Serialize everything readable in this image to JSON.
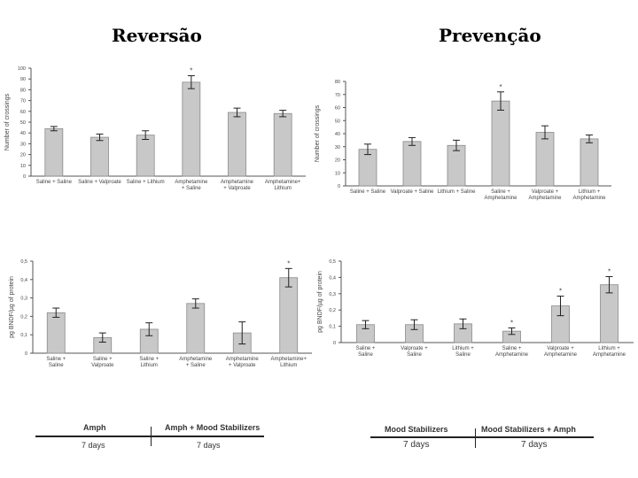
{
  "headings": {
    "left": "Reversão",
    "right": "Prevenção"
  },
  "chart_data": [
    {
      "id": "tl",
      "type": "bar",
      "title": "",
      "ylabel": "Number of crossings",
      "xlabel": "",
      "ylim": [
        0,
        100
      ],
      "yticks": [
        0,
        10,
        20,
        30,
        40,
        50,
        60,
        70,
        80,
        90,
        100
      ],
      "categories": [
        [
          "Saline + Saline"
        ],
        [
          "Saline + Valproate"
        ],
        [
          "Saline + Lithium"
        ],
        [
          "Amphetamine",
          "+ Saline"
        ],
        [
          "Amphetamine",
          "+ Valproate"
        ],
        [
          "Amphetamine+",
          "Lithium"
        ]
      ],
      "values": [
        44,
        36,
        38,
        87,
        59,
        58
      ],
      "errors": [
        2,
        3,
        4,
        6,
        4,
        3
      ],
      "annotations": [
        "",
        "",
        "",
        "*",
        "",
        ""
      ]
    },
    {
      "id": "tr",
      "type": "bar",
      "title": "",
      "ylabel": "Number of crossings",
      "xlabel": "",
      "ylim": [
        0,
        80
      ],
      "yticks": [
        0,
        10,
        20,
        30,
        40,
        50,
        60,
        70,
        80
      ],
      "categories": [
        [
          "Saline + Saline"
        ],
        [
          "Valproate + Saline"
        ],
        [
          "Lithium + Saline"
        ],
        [
          "Saline +",
          "Amphetamine"
        ],
        [
          "Valproate +",
          "Amphetamine"
        ],
        [
          "Lithium +",
          "Amphetamine"
        ]
      ],
      "values": [
        28,
        34,
        31,
        65,
        41,
        36
      ],
      "errors": [
        4,
        3,
        4,
        7,
        5,
        3
      ],
      "annotations": [
        "",
        "",
        "",
        "*",
        "",
        ""
      ]
    },
    {
      "id": "bl",
      "type": "bar",
      "title": "",
      "ylabel": "pg BNDF/µg of protein",
      "xlabel": "",
      "ylim": [
        0,
        0.5
      ],
      "yticks": [
        0,
        0.1,
        0.2,
        0.3,
        0.4,
        0.5
      ],
      "ytick_labels": [
        "0",
        "0,1",
        "0,2",
        "0,3",
        "0,4",
        "0,5"
      ],
      "categories": [
        [
          "Saline +",
          "Saline"
        ],
        [
          "Saline +",
          "Valproate"
        ],
        [
          "Saline +",
          "Lithium"
        ],
        [
          "Amphetamine",
          "+ Saline"
        ],
        [
          "Amphetamine",
          "+ Valproate"
        ],
        [
          "Amphetamine+",
          "Lithium"
        ]
      ],
      "values": [
        0.22,
        0.085,
        0.13,
        0.27,
        0.11,
        0.41
      ],
      "errors": [
        0.025,
        0.025,
        0.035,
        0.025,
        0.06,
        0.05
      ],
      "annotations": [
        "",
        "",
        "",
        "",
        "",
        "*"
      ]
    },
    {
      "id": "br",
      "type": "bar",
      "title": "",
      "ylabel": "pg BNDF/µg of protein",
      "xlabel": "",
      "ylim": [
        0,
        0.5
      ],
      "yticks": [
        0,
        0.1,
        0.2,
        0.3,
        0.4,
        0.5
      ],
      "ytick_labels": [
        "0",
        "0,1",
        "0,2",
        "0,3",
        "0,4",
        "0,5"
      ],
      "categories": [
        [
          "Saline +",
          "Saline"
        ],
        [
          "Valproate +",
          "Saline"
        ],
        [
          "Lithium +",
          "Saline"
        ],
        [
          "Saline +",
          "Amphetamine"
        ],
        [
          "Valproate +",
          "Amphetamine"
        ],
        [
          "Lithium +",
          "Amphetamine"
        ]
      ],
      "values": [
        0.11,
        0.11,
        0.115,
        0.07,
        0.225,
        0.355
      ],
      "errors": [
        0.025,
        0.03,
        0.03,
        0.02,
        0.06,
        0.05
      ],
      "annotations": [
        "",
        "",
        "",
        "*",
        "*",
        "*"
      ]
    }
  ],
  "timelines": {
    "left": {
      "phase1": "Amph",
      "phase2": "Amph + Mood Stabilizers",
      "days1": "7 days",
      "days2": "7 days"
    },
    "right": {
      "phase1": "Mood Stabilizers",
      "phase2": "Mood Stabilizers + Amph",
      "days1": "7 days",
      "days2": "7 days"
    }
  }
}
